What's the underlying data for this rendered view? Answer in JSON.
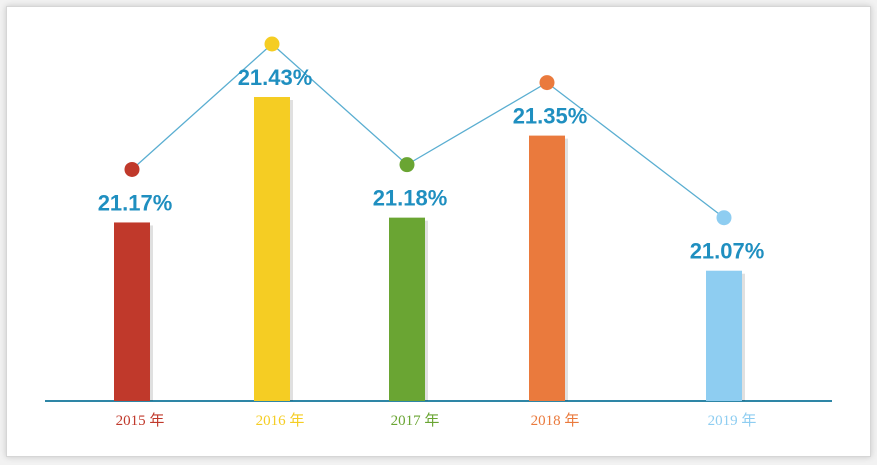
{
  "chart_data": {
    "type": "bar",
    "categories": [
      "2015 年",
      "2016 年",
      "2017 年",
      "2018 年",
      "2019 年"
    ],
    "values": [
      21.17,
      21.43,
      21.18,
      21.35,
      21.07
    ],
    "value_labels": [
      "21.17%",
      "21.43%",
      "21.18%",
      "21.35%",
      "21.07%"
    ],
    "colors": [
      "#c0392b",
      "#f5cd23",
      "#6aa533",
      "#ea7a3d",
      "#8ecdf1"
    ],
    "overlay": "line",
    "line_color": "#5aaed1",
    "label_color": "#1f8fc0",
    "axis_color": "#2e86a6",
    "title": "",
    "xlabel": "",
    "ylabel": "",
    "grid": false
  }
}
